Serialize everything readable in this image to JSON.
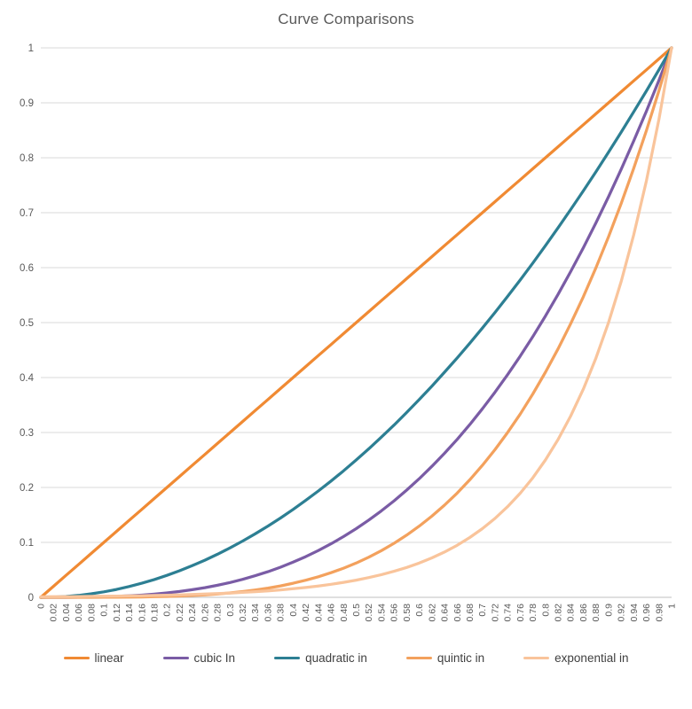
{
  "title": "Curve Comparisons",
  "colors": {
    "background": "#FFFFFF",
    "title_text": "#595959",
    "axis_label_text": "#595959",
    "legend_text": "#404040",
    "gridline": "#D9D9D9",
    "axis_line": "#BFBFBF"
  },
  "chart_data": {
    "type": "line",
    "title": "Curve Comparisons",
    "xlabel": "",
    "ylabel": "",
    "xlim": [
      0,
      1
    ],
    "ylim": [
      0,
      1
    ],
    "grid": "horizontal",
    "legend_position": "bottom",
    "x_tick_labels": [
      "0",
      "0.02",
      "0.04",
      "0.06",
      "0.08",
      "0.1",
      "0.12",
      "0.14",
      "0.16",
      "0.18",
      "0.2",
      "0.22",
      "0.24",
      "0.26",
      "0.28",
      "0.3",
      "0.32",
      "0.34",
      "0.36",
      "0.38",
      "0.4",
      "0.42",
      "0.44",
      "0.46",
      "0.48",
      "0.5",
      "0.52",
      "0.54",
      "0.56",
      "0.58",
      "0.6",
      "0.62",
      "0.64",
      "0.66",
      "0.68",
      "0.7",
      "0.72",
      "0.74",
      "0.76",
      "0.78",
      "0.8",
      "0.82",
      "0.84",
      "0.86",
      "0.88",
      "0.9",
      "0.92",
      "0.94",
      "0.96",
      "0.98",
      "1"
    ],
    "y_tick_labels": [
      "0",
      "0.1",
      "0.2",
      "0.3",
      "0.4",
      "0.5",
      "0.6",
      "0.7",
      "0.8",
      "0.9",
      "1"
    ],
    "x": [
      0,
      0.02,
      0.04,
      0.06,
      0.08,
      0.1,
      0.12,
      0.14,
      0.16,
      0.18,
      0.2,
      0.22,
      0.24,
      0.26,
      0.28,
      0.3,
      0.32,
      0.34,
      0.36,
      0.38,
      0.4,
      0.42,
      0.44,
      0.46,
      0.48,
      0.5,
      0.52,
      0.54,
      0.56,
      0.58,
      0.6,
      0.62,
      0.64,
      0.66,
      0.68,
      0.7,
      0.72,
      0.74,
      0.76,
      0.78,
      0.8,
      0.82,
      0.84,
      0.86,
      0.88,
      0.9,
      0.92,
      0.94,
      0.96,
      0.98,
      1
    ],
    "series": [
      {
        "name": "linear",
        "color": "#F08A33",
        "values": [
          0,
          0.02,
          0.04,
          0.06,
          0.08,
          0.1,
          0.12,
          0.14,
          0.16,
          0.18,
          0.2,
          0.22,
          0.24,
          0.26,
          0.28,
          0.3,
          0.32,
          0.34,
          0.36,
          0.38,
          0.4,
          0.42,
          0.44,
          0.46,
          0.48,
          0.5,
          0.52,
          0.54,
          0.56,
          0.58,
          0.6,
          0.62,
          0.64,
          0.66,
          0.68,
          0.7,
          0.72,
          0.74,
          0.76,
          0.78,
          0.8,
          0.82,
          0.84,
          0.86,
          0.88,
          0.9,
          0.92,
          0.94,
          0.96,
          0.98,
          1
        ]
      },
      {
        "name": "cubic In",
        "color": "#7A5CA5",
        "values": [
          0,
          1e-05,
          6e-05,
          0.00022,
          0.00051,
          0.001,
          0.00173,
          0.00274,
          0.0041,
          0.00583,
          0.008,
          0.01065,
          0.01382,
          0.01758,
          0.02195,
          0.027,
          0.03277,
          0.0393,
          0.04666,
          0.05487,
          0.064,
          0.07409,
          0.08518,
          0.09734,
          0.11059,
          0.125,
          0.14061,
          0.15746,
          0.17562,
          0.19511,
          0.216,
          0.23834,
          0.26214,
          0.28749,
          0.31443,
          0.343,
          0.37325,
          0.40524,
          0.43898,
          0.47455,
          0.512,
          0.55137,
          0.5927,
          0.63606,
          0.68147,
          0.729,
          0.77869,
          0.83058,
          0.88474,
          0.94119,
          1
        ]
      },
      {
        "name": "quadratic in",
        "color": "#2D7F93",
        "values": [
          0,
          0.0004,
          0.0016,
          0.0036,
          0.0064,
          0.01,
          0.0144,
          0.0196,
          0.0256,
          0.0324,
          0.04,
          0.0484,
          0.0576,
          0.0676,
          0.0784,
          0.09,
          0.1024,
          0.1156,
          0.1296,
          0.1444,
          0.16,
          0.1764,
          0.1936,
          0.2116,
          0.2304,
          0.25,
          0.2704,
          0.2916,
          0.3136,
          0.3364,
          0.36,
          0.3844,
          0.4096,
          0.4356,
          0.4624,
          0.49,
          0.5184,
          0.5476,
          0.5776,
          0.6084,
          0.64,
          0.6724,
          0.7056,
          0.7396,
          0.7744,
          0.81,
          0.8464,
          0.8836,
          0.9216,
          0.9604,
          1
        ]
      },
      {
        "name": "quintic in",
        "color": "#F3A15D",
        "values": [
          0,
          0,
          0,
          1e-05,
          4e-05,
          0.0001,
          0.00021,
          0.00038,
          0.00066,
          0.00105,
          0.0016,
          0.00234,
          0.00332,
          0.00457,
          0.00615,
          0.0081,
          0.01049,
          0.01336,
          0.0168,
          0.02085,
          0.0256,
          0.03112,
          0.03748,
          0.04477,
          0.05308,
          0.0625,
          0.07312,
          0.08503,
          0.09834,
          0.11316,
          0.1296,
          0.14776,
          0.16777,
          0.18975,
          0.21381,
          0.2401,
          0.26874,
          0.29987,
          0.33362,
          0.37015,
          0.4096,
          0.45212,
          0.49787,
          0.54701,
          0.5997,
          0.6561,
          0.71639,
          0.78075,
          0.84934,
          0.92237,
          1
        ]
      },
      {
        "name": "exponential in",
        "color": "#F9C49B",
        "values": [
          0.00098,
          0.00112,
          0.00129,
          0.00148,
          0.0017,
          0.00195,
          0.00224,
          0.00258,
          0.00296,
          0.0034,
          0.00391,
          0.00449,
          0.00515,
          0.00592,
          0.0068,
          0.00781,
          0.00898,
          0.01031,
          0.01184,
          0.0136,
          0.01563,
          0.01795,
          0.02062,
          0.02368,
          0.0272,
          0.03125,
          0.0359,
          0.04124,
          0.04737,
          0.05441,
          0.0625,
          0.07179,
          0.08247,
          0.09473,
          0.10882,
          0.125,
          0.14359,
          0.16494,
          0.18946,
          0.21764,
          0.25,
          0.28717,
          0.32988,
          0.37893,
          0.43528,
          0.5,
          0.57435,
          0.65975,
          0.75786,
          0.87055,
          1
        ]
      }
    ]
  }
}
